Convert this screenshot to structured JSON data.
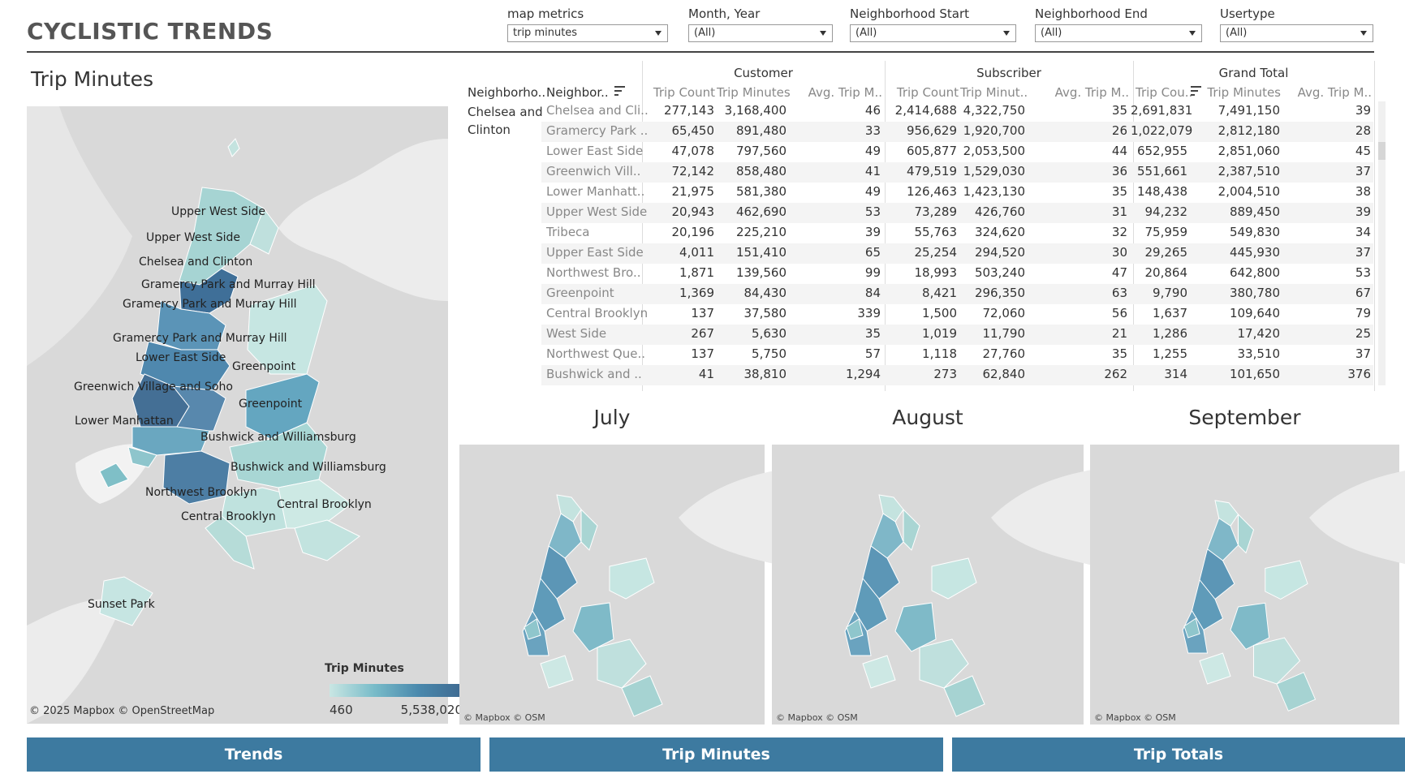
{
  "header": {
    "title": "CYCLISTIC TRENDS"
  },
  "filters": [
    {
      "label": "map metrics",
      "value": "trip minutes"
    },
    {
      "label": "Month, Year",
      "value": "(All)"
    },
    {
      "label": "Neighborhood Start",
      "value": "(All)"
    },
    {
      "label": "Neighborhood End",
      "value": "(All)"
    },
    {
      "label": "Usertype",
      "value": "(All)"
    }
  ],
  "main_map": {
    "title": "Trip Minutes",
    "labels": [
      "Upper West Side",
      "Upper West Side",
      "Chelsea and Clinton",
      "Gramercy Park and Murray Hill",
      "Gramercy Park and Murray Hill",
      "Gramercy Park and Murray Hill",
      "Lower East Side",
      "Greenpoint",
      "Greenwich Village and Soho",
      "Greenpoint",
      "Lower Manhattan",
      "Bushwick and Williamsburg",
      "Bushwick and Williamsburg",
      "Northwest Brooklyn",
      "Central Brooklyn",
      "Central Brooklyn",
      "Sunset Park"
    ],
    "attribution": "© 2025 Mapbox  © OpenStreetMap",
    "legend": {
      "title": "Trip Minutes",
      "min": "460",
      "max": "5,538,020",
      "colors": [
        "#c9e6e3",
        "#3f6a91"
      ]
    }
  },
  "table": {
    "groups": [
      "Customer",
      "Subscriber",
      "Grand Total"
    ],
    "columns": [
      "Neighborho..",
      "Neighbor..",
      "Trip Count",
      "Trip Minutes",
      "Avg. Trip M..",
      "Trip Count",
      "Trip Minut..",
      "Avg. Trip M..",
      "Trip Cou..",
      "Trip Minutes",
      "Avg. Trip M.."
    ],
    "row_group": "Chelsea and Clinton",
    "rows": [
      [
        "Chelsea and Cli..",
        "277,143",
        "3,168,400",
        "46",
        "2,414,688",
        "4,322,750",
        "35",
        "2,691,831",
        "7,491,150",
        "39"
      ],
      [
        "Gramercy Park ..",
        "65,450",
        "891,480",
        "33",
        "956,629",
        "1,920,700",
        "26",
        "1,022,079",
        "2,812,180",
        "28"
      ],
      [
        "Lower East Side",
        "47,078",
        "797,560",
        "49",
        "605,877",
        "2,053,500",
        "44",
        "652,955",
        "2,851,060",
        "45"
      ],
      [
        "Greenwich Vill..",
        "72,142",
        "858,480",
        "41",
        "479,519",
        "1,529,030",
        "36",
        "551,661",
        "2,387,510",
        "37"
      ],
      [
        "Lower Manhatt..",
        "21,975",
        "581,380",
        "49",
        "126,463",
        "1,423,130",
        "35",
        "148,438",
        "2,004,510",
        "38"
      ],
      [
        "Upper West Side",
        "20,943",
        "462,690",
        "53",
        "73,289",
        "426,760",
        "31",
        "94,232",
        "889,450",
        "39"
      ],
      [
        "Tribeca",
        "20,196",
        "225,210",
        "39",
        "55,763",
        "324,620",
        "32",
        "75,959",
        "549,830",
        "34"
      ],
      [
        "Upper East Side",
        "4,011",
        "151,410",
        "65",
        "25,254",
        "294,520",
        "30",
        "29,265",
        "445,930",
        "37"
      ],
      [
        "Northwest Bro..",
        "1,871",
        "139,560",
        "99",
        "18,993",
        "503,240",
        "47",
        "20,864",
        "642,800",
        "53"
      ],
      [
        "Greenpoint",
        "1,369",
        "84,430",
        "84",
        "8,421",
        "296,350",
        "63",
        "9,790",
        "380,780",
        "67"
      ],
      [
        "Central Brooklyn",
        "137",
        "37,580",
        "339",
        "1,500",
        "72,060",
        "56",
        "1,637",
        "109,640",
        "79"
      ],
      [
        "West Side",
        "267",
        "5,630",
        "35",
        "1,019",
        "11,790",
        "21",
        "1,286",
        "17,420",
        "25"
      ],
      [
        "Northwest Que..",
        "137",
        "5,750",
        "57",
        "1,118",
        "27,760",
        "35",
        "1,255",
        "33,510",
        "37"
      ],
      [
        "Bushwick and ..",
        "41",
        "38,810",
        "1,294",
        "273",
        "62,840",
        "262",
        "314",
        "101,650",
        "376"
      ]
    ]
  },
  "small_maps": [
    {
      "title": "July",
      "attribution": "© Mapbox  © OSM"
    },
    {
      "title": "August",
      "attribution": "© Mapbox  © OSM"
    },
    {
      "title": "September",
      "attribution": "© Mapbox  © OSM"
    }
  ],
  "nav": {
    "trends": "Trends",
    "trip_minutes": "Trip Minutes",
    "trip_totals": "Trip Totals"
  }
}
